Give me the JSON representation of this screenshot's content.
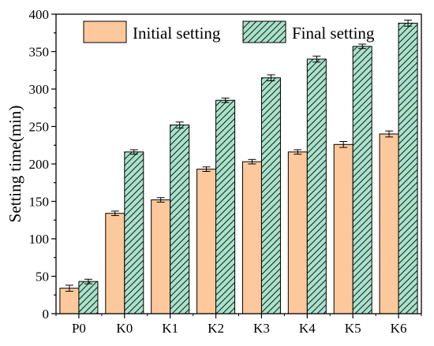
{
  "chart_data": {
    "type": "bar",
    "title": "",
    "xlabel": "",
    "ylabel": "Setting time(min)",
    "ylim": [
      0,
      400
    ],
    "yticks": [
      0,
      50,
      100,
      150,
      200,
      250,
      300,
      350,
      400
    ],
    "categories": [
      "P0",
      "K0",
      "K1",
      "K2",
      "K3",
      "K4",
      "K5",
      "K6"
    ],
    "grid": false,
    "legend_position": "top",
    "series": [
      {
        "name": "Initial setting",
        "values": [
          34,
          134,
          152,
          193,
          203,
          216,
          226,
          240
        ],
        "errors": [
          4,
          3,
          3,
          3,
          3,
          3,
          4,
          4
        ],
        "color": "#FDC89B",
        "pattern": "none"
      },
      {
        "name": "Final setting",
        "values": [
          43,
          216,
          252,
          285,
          315,
          340,
          357,
          388
        ],
        "errors": [
          3,
          3,
          4,
          3,
          4,
          4,
          3,
          4
        ],
        "color": "#A8E3CC",
        "pattern": "diagonal-hatch"
      }
    ]
  }
}
